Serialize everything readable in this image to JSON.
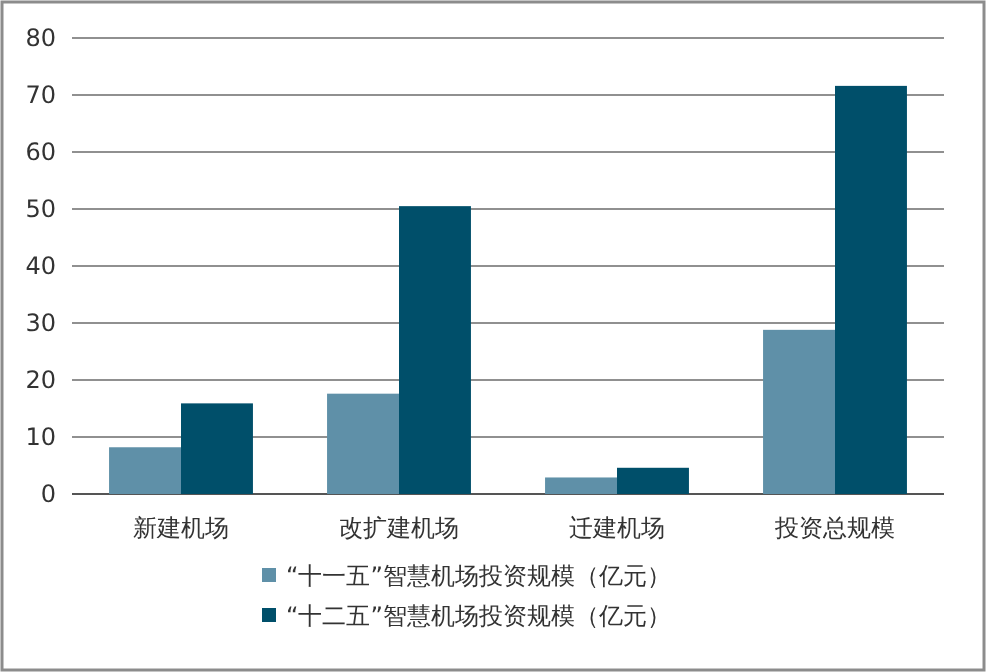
{
  "chart_data": {
    "type": "bar",
    "categories": [
      "新建机场",
      "改扩建机场",
      "迁建机场",
      "投资总规模"
    ],
    "series": [
      {
        "name": "“十一五”智慧机场投资规模（亿元）",
        "color": "#5f90a8",
        "values": [
          8.2,
          17.6,
          2.9,
          28.8
        ]
      },
      {
        "name": "“十二五”智慧机场投资规模（亿元）",
        "color": "#004f6a",
        "values": [
          15.9,
          50.5,
          4.6,
          71.6
        ]
      }
    ],
    "ylim": [
      0,
      80
    ],
    "yticks": [
      0,
      10,
      20,
      30,
      40,
      50,
      60,
      70,
      80
    ],
    "grid": "y",
    "legend": "bottom"
  }
}
